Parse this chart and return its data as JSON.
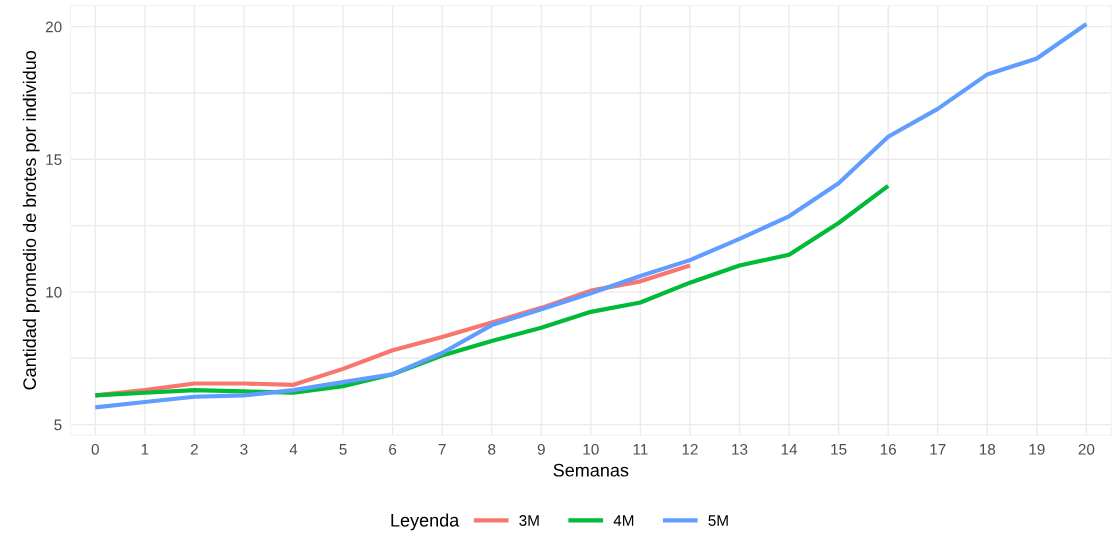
{
  "chart_data": {
    "type": "line",
    "xlabel": "Semanas",
    "ylabel": "Cantidad promedio de brotes por individuo",
    "legend_title": "Leyenda",
    "legend": "bottom",
    "grid": true,
    "marker": "none",
    "line_style": "solid",
    "xlim": [
      -0.5,
      20.5
    ],
    "xticks": [
      0,
      1,
      2,
      3,
      4,
      5,
      6,
      7,
      8,
      9,
      10,
      11,
      12,
      13,
      14,
      15,
      16,
      17,
      18,
      19,
      20
    ],
    "ylim": [
      4.6,
      20.8
    ],
    "yticks": [
      5,
      {
        "value": 7.5,
        "label": null
      },
      10,
      {
        "value": 12.5,
        "label": null
      },
      15,
      {
        "value": 17.5,
        "label": null
      },
      20
    ],
    "series": [
      {
        "name": "3M",
        "color": "#f8766d",
        "x": [
          0,
          1,
          2,
          3,
          4,
          5,
          6,
          7,
          8,
          9,
          10,
          11,
          12
        ],
        "values": [
          6.1,
          6.3,
          6.55,
          6.55,
          6.5,
          7.1,
          7.8,
          8.3,
          8.85,
          9.4,
          10.05,
          10.4,
          11.0
        ]
      },
      {
        "name": "4M",
        "color": "#00ba38",
        "x": [
          0,
          1,
          2,
          3,
          4,
          5,
          6,
          7,
          8,
          9,
          10,
          11,
          12,
          13,
          14,
          15,
          16
        ],
        "values": [
          6.1,
          6.2,
          6.3,
          6.25,
          6.2,
          6.45,
          6.9,
          7.6,
          8.15,
          8.65,
          9.25,
          9.6,
          10.35,
          11.0,
          11.4,
          12.6,
          14.0
        ]
      },
      {
        "name": "5M",
        "color": "#619cff",
        "x": [
          0,
          1,
          2,
          3,
          4,
          5,
          6,
          7,
          8,
          9,
          10,
          11,
          12,
          13,
          14,
          15,
          16,
          17,
          18,
          19,
          20
        ],
        "values": [
          5.65,
          5.85,
          6.05,
          6.1,
          6.3,
          6.6,
          6.9,
          7.7,
          8.75,
          9.35,
          9.95,
          10.6,
          11.2,
          12.0,
          12.85,
          14.1,
          15.85,
          16.9,
          18.2,
          18.8,
          20.1
        ]
      }
    ]
  }
}
